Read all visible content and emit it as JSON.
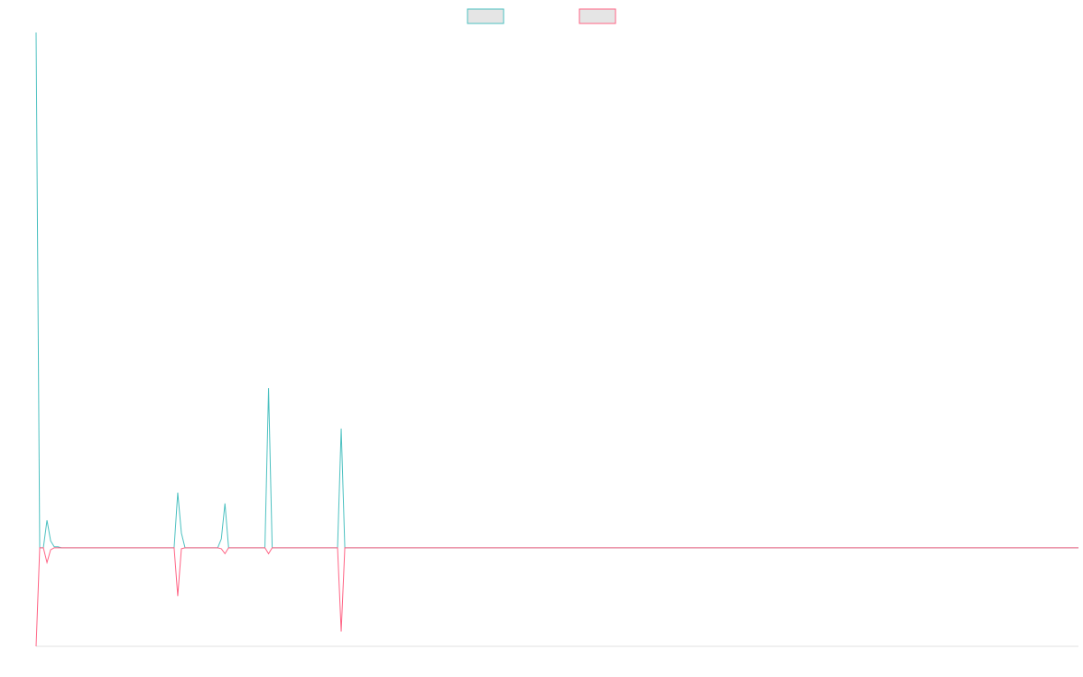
{
  "chart_data": {
    "type": "line",
    "x": [
      0,
      1,
      2,
      3,
      4,
      5,
      6,
      7,
      8,
      9,
      10,
      11,
      12,
      13,
      14,
      15,
      16,
      17,
      18,
      19,
      20,
      21,
      22,
      23,
      24,
      25,
      26,
      27,
      28,
      29,
      30,
      31,
      32,
      33,
      34,
      35,
      36,
      37,
      38,
      39,
      40,
      41,
      42,
      43,
      44,
      45,
      46,
      47,
      48,
      49,
      50,
      51,
      52,
      53,
      54,
      55,
      56,
      57,
      58,
      59,
      60,
      61,
      62,
      63,
      64,
      65,
      66,
      67,
      68,
      69,
      70,
      71,
      72,
      73,
      74,
      75,
      76,
      77,
      78,
      79,
      80,
      81,
      82,
      83,
      84,
      85,
      86,
      87,
      88,
      89,
      90,
      91,
      92,
      93,
      94,
      95,
      96,
      97,
      98,
      99,
      100,
      101,
      102,
      103,
      104,
      105,
      106,
      107,
      108,
      109,
      110,
      111,
      112,
      113,
      114,
      115,
      116,
      117,
      118,
      119,
      120,
      121,
      122,
      123,
      124,
      125,
      126,
      127,
      128,
      129,
      130,
      131,
      132,
      133,
      134,
      135,
      136,
      137,
      138,
      139,
      140,
      141,
      142,
      143,
      144,
      145,
      146,
      147,
      148,
      149,
      150,
      151,
      152,
      153,
      154,
      155,
      156,
      157,
      158,
      159,
      160,
      161,
      162,
      163,
      164,
      165,
      166,
      167,
      168,
      169,
      170,
      171,
      172,
      173,
      174,
      175,
      176,
      177,
      178,
      179,
      180,
      181,
      182,
      183,
      184,
      185,
      186,
      187,
      188,
      189,
      190,
      191,
      192,
      193,
      194,
      195,
      196,
      197,
      198,
      199,
      200,
      201,
      202,
      203,
      204,
      205,
      206,
      207,
      208,
      209,
      210,
      211,
      212,
      213,
      214,
      215,
      216,
      217,
      218,
      219,
      220,
      221,
      222,
      223,
      224,
      225,
      226,
      227,
      228,
      229,
      230,
      231,
      232,
      233,
      234,
      235,
      236,
      237,
      238,
      239,
      240,
      241,
      242,
      243,
      244,
      245,
      246,
      247,
      248,
      249,
      250,
      251,
      252,
      253,
      254,
      255,
      256,
      257,
      258,
      259,
      260,
      261,
      262,
      263,
      264,
      265,
      266,
      267,
      268,
      269,
      270,
      271,
      272,
      273,
      274,
      275,
      276,
      277,
      278,
      279,
      280,
      281,
      282,
      283,
      284,
      285,
      286,
      287
    ],
    "xlim": [
      0,
      287
    ],
    "ylim": [
      -1,
      5.23
    ],
    "grid": false,
    "legend_position": "top-center",
    "series": [
      {
        "color": "#4bc0c0",
        "legend_fill": "#e5e5e5",
        "points": [
          [
            0,
            5.23
          ],
          [
            1,
            0
          ],
          [
            2,
            0
          ],
          [
            3,
            0.28
          ],
          [
            4,
            0.07
          ],
          [
            5,
            0.01
          ],
          [
            6,
            0.01
          ],
          [
            7,
            0
          ],
          [
            37,
            0
          ],
          [
            38,
            0
          ],
          [
            39,
            0.56
          ],
          [
            40,
            0.15
          ],
          [
            41,
            0
          ],
          [
            50,
            0
          ],
          [
            51,
            0.09
          ],
          [
            52,
            0.45
          ],
          [
            53,
            0
          ],
          [
            62,
            0
          ],
          [
            63,
            0
          ],
          [
            64,
            1.62
          ],
          [
            65,
            0
          ],
          [
            82,
            0
          ],
          [
            83,
            0
          ],
          [
            84,
            1.21
          ],
          [
            85,
            0
          ],
          [
            287,
            0
          ]
        ]
      },
      {
        "color": "#ff6384",
        "legend_fill": "#e5e5e5",
        "points": [
          [
            0,
            -1
          ],
          [
            1,
            0
          ],
          [
            2,
            0
          ],
          [
            3,
            -0.15
          ],
          [
            4,
            -0.02
          ],
          [
            5,
            0
          ],
          [
            37,
            0
          ],
          [
            38,
            0
          ],
          [
            39,
            -0.49
          ],
          [
            40,
            -0.01
          ],
          [
            41,
            0
          ],
          [
            50,
            0
          ],
          [
            51,
            -0.01
          ],
          [
            52,
            -0.06
          ],
          [
            53,
            0
          ],
          [
            62,
            0
          ],
          [
            63,
            0
          ],
          [
            64,
            -0.06
          ],
          [
            65,
            0
          ],
          [
            82,
            0
          ],
          [
            83,
            0
          ],
          [
            84,
            -0.85
          ],
          [
            85,
            0
          ],
          [
            287,
            0
          ]
        ]
      }
    ]
  }
}
